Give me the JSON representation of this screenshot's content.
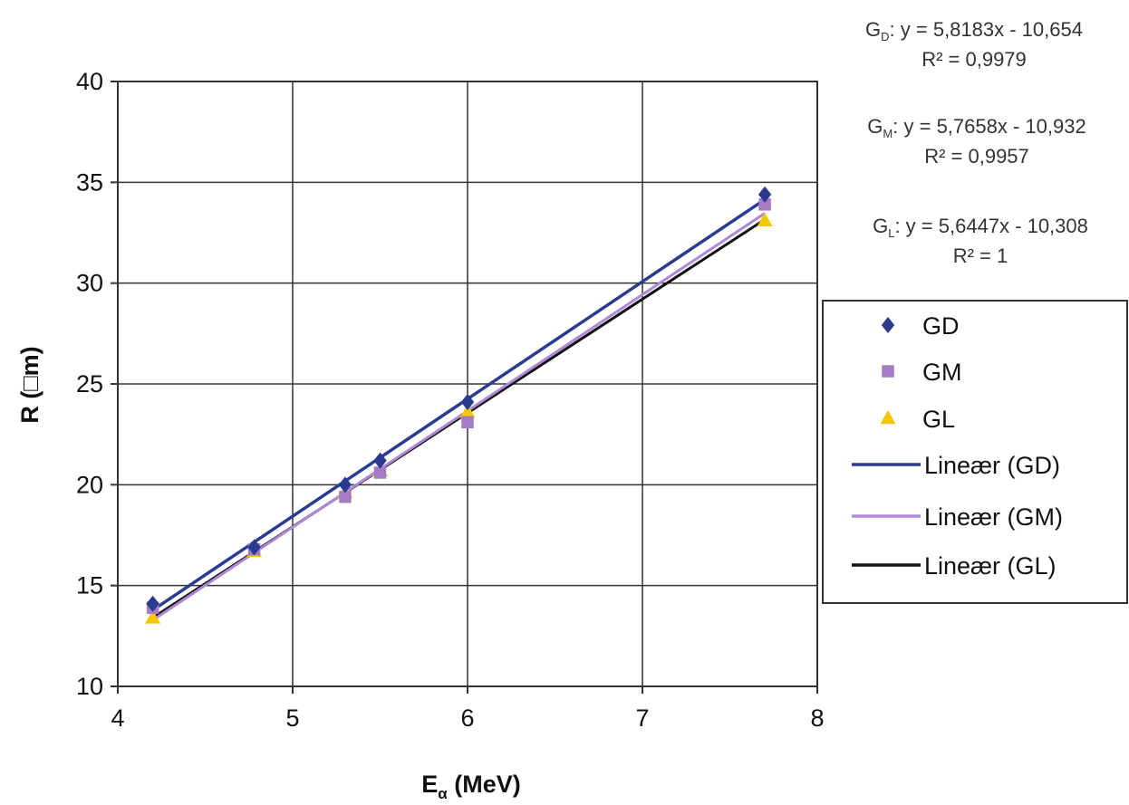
{
  "chart_data": {
    "type": "scatter",
    "title": "",
    "xlabel": {
      "main": "E",
      "sub": "α",
      "rest": " (MeV)"
    },
    "ylabel": "R (□m)",
    "xlim": [
      4,
      8
    ],
    "ylim": [
      10,
      40
    ],
    "xticks": [
      "4",
      "5",
      "6",
      "7",
      "8"
    ],
    "yticks": [
      "10",
      "15",
      "20",
      "25",
      "30",
      "35",
      "40"
    ],
    "grid": true,
    "legend_position": "right",
    "series": [
      {
        "name": "GD",
        "marker": "diamond",
        "color": "#2a3a8f",
        "x": [
          4.2,
          4.78,
          5.3,
          5.5,
          6.0,
          7.7
        ],
        "y": [
          14.1,
          16.9,
          20.0,
          21.2,
          24.1,
          34.4
        ]
      },
      {
        "name": "GM",
        "marker": "square",
        "color": "#a47cc4",
        "x": [
          4.2,
          4.78,
          5.3,
          5.5,
          6.0,
          7.7
        ],
        "y": [
          13.9,
          16.8,
          19.4,
          20.6,
          23.1,
          33.9
        ]
      },
      {
        "name": "GL",
        "marker": "triangle",
        "color": "#f2c800",
        "x": [
          4.2,
          4.78,
          5.3,
          5.5,
          6.0,
          7.7
        ],
        "y": [
          13.4,
          16.7,
          19.6,
          20.7,
          23.6,
          33.1
        ]
      }
    ],
    "trendlines": [
      {
        "name": "Lineær (GD)",
        "color": "#2b3a93",
        "slope": 5.8183,
        "intercept": -10.654,
        "x_range": [
          4.2,
          7.7
        ]
      },
      {
        "name": "Lineær (GM)",
        "color": "#b088d6",
        "slope": 5.7658,
        "intercept": -10.932,
        "x_range": [
          4.2,
          7.7
        ]
      },
      {
        "name": "Lineær (GL)",
        "color": "#111111",
        "slope": 5.6447,
        "intercept": -10.308,
        "x_range": [
          4.2,
          7.7
        ]
      }
    ],
    "annotations": [
      {
        "label_main": "G",
        "label_sub": "D",
        "equation": ": y = 5,8183x - 10,654",
        "r2": "R² = 0,9979"
      },
      {
        "label_main": "G",
        "label_sub": "M",
        "equation": ": y = 5,7658x - 10,932",
        "r2": "R² = 0,9957"
      },
      {
        "label_main": "G",
        "label_sub": "L",
        "equation": ": y = 5,6447x - 10,308",
        "r2": "R² = 1"
      }
    ]
  }
}
